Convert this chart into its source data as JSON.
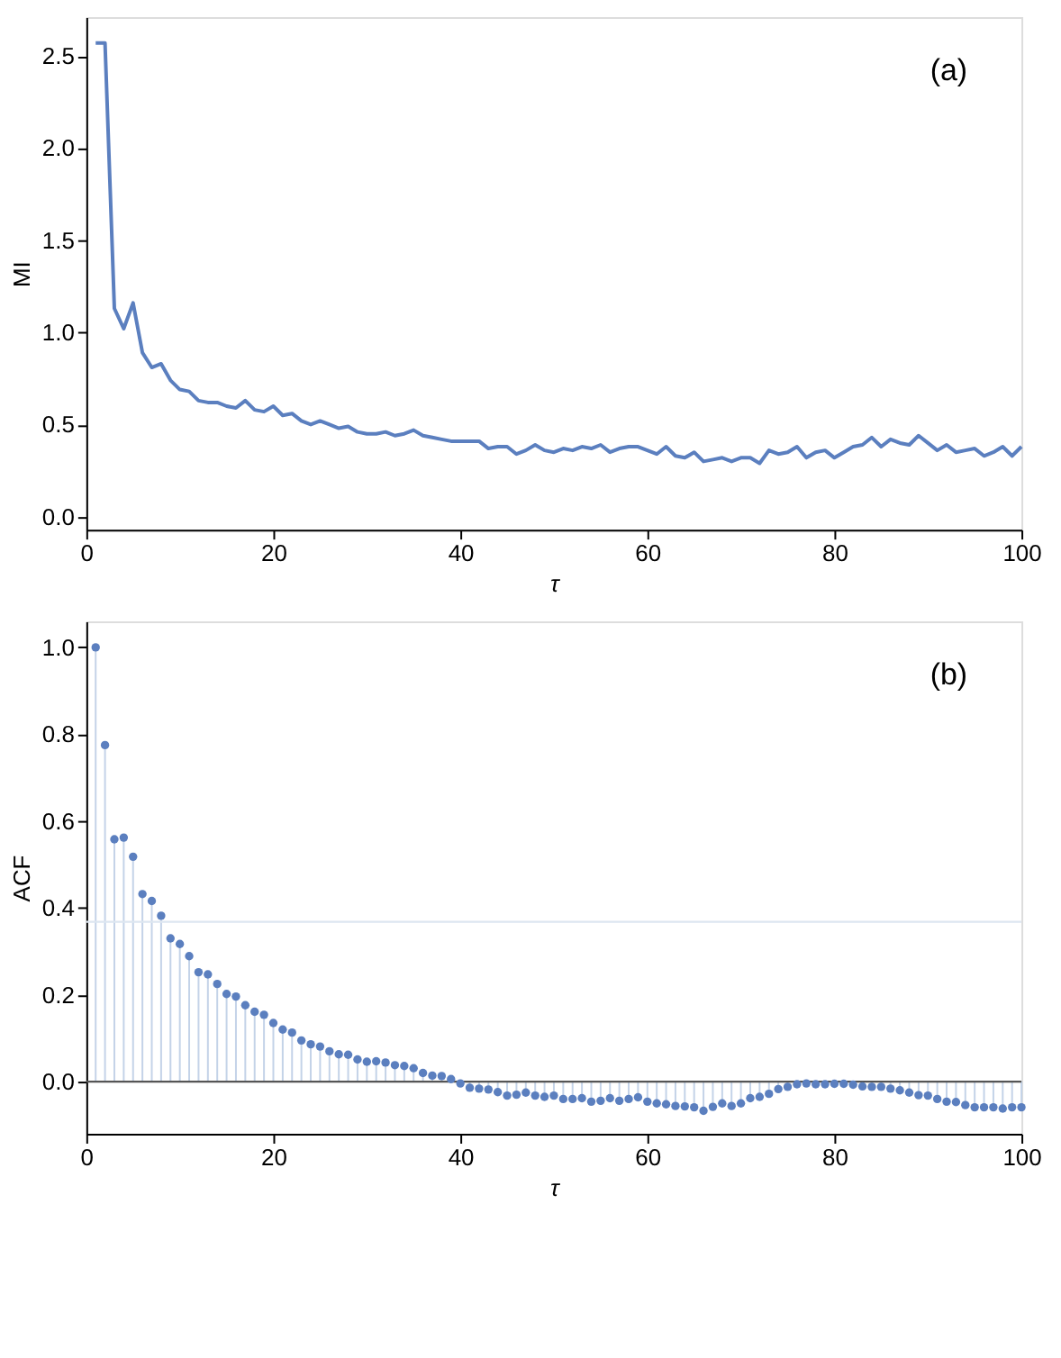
{
  "chart_data": [
    {
      "type": "line",
      "xlabel": "τ",
      "ylabel": "MI",
      "annotations": [
        "(a)"
      ],
      "x": [
        1,
        2,
        3,
        4,
        5,
        6,
        7,
        8,
        9,
        10,
        11,
        12,
        13,
        14,
        15,
        16,
        17,
        18,
        19,
        20,
        21,
        22,
        23,
        24,
        25,
        26,
        27,
        28,
        29,
        30,
        31,
        32,
        33,
        34,
        35,
        36,
        37,
        38,
        39,
        40,
        41,
        42,
        43,
        44,
        45,
        46,
        47,
        48,
        49,
        50,
        51,
        52,
        53,
        54,
        55,
        56,
        57,
        58,
        59,
        60,
        61,
        62,
        63,
        64,
        65,
        66,
        67,
        68,
        69,
        70,
        71,
        72,
        73,
        74,
        75,
        76,
        77,
        78,
        79,
        80,
        81,
        82,
        83,
        84,
        85,
        86,
        87,
        88,
        89,
        90,
        91,
        92,
        93,
        94,
        95,
        96,
        97,
        98,
        99,
        100
      ],
      "series": [
        {
          "color": "#5b7fbf",
          "values": [
            2.57,
            2.57,
            1.13,
            1.02,
            1.16,
            0.89,
            0.81,
            0.83,
            0.74,
            0.69,
            0.68,
            0.63,
            0.62,
            0.62,
            0.6,
            0.59,
            0.63,
            0.58,
            0.57,
            0.6,
            0.55,
            0.56,
            0.52,
            0.5,
            0.52,
            0.5,
            0.48,
            0.49,
            0.46,
            0.45,
            0.45,
            0.46,
            0.44,
            0.45,
            0.47,
            0.44,
            0.43,
            0.42,
            0.41,
            0.41,
            0.41,
            0.41,
            0.37,
            0.38,
            0.38,
            0.34,
            0.36,
            0.39,
            0.36,
            0.35,
            0.37,
            0.36,
            0.38,
            0.37,
            0.39,
            0.35,
            0.37,
            0.38,
            0.38,
            0.36,
            0.34,
            0.38,
            0.33,
            0.32,
            0.35,
            0.3,
            0.31,
            0.32,
            0.3,
            0.32,
            0.32,
            0.29,
            0.36,
            0.34,
            0.35,
            0.38,
            0.32,
            0.35,
            0.36,
            0.32,
            0.35,
            0.38,
            0.39,
            0.43,
            0.38,
            0.42,
            0.4,
            0.39,
            0.44,
            0.4,
            0.36,
            0.39,
            0.35,
            0.36,
            0.37,
            0.33,
            0.35,
            0.38,
            0.33,
            0.38
          ]
        }
      ],
      "xlim": [
        0,
        100
      ],
      "xticks": [
        0,
        20,
        40,
        60,
        80,
        100
      ],
      "ylim": [
        -0.07,
        2.71
      ],
      "yticks": [
        {
          "value": 0,
          "label": "0.0"
        },
        0.5,
        {
          "value": 1,
          "label": "1.0"
        },
        1.5,
        {
          "value": 2,
          "label": "2.0"
        },
        2.5
      ],
      "grid": false,
      "marker": "none",
      "line_style": "solid"
    },
    {
      "type": "lollipop",
      "xlabel": "τ",
      "ylabel": "ACF",
      "annotations": [
        "(b)"
      ],
      "x": [
        1,
        2,
        3,
        4,
        5,
        6,
        7,
        8,
        9,
        10,
        11,
        12,
        13,
        14,
        15,
        16,
        17,
        18,
        19,
        20,
        21,
        22,
        23,
        24,
        25,
        26,
        27,
        28,
        29,
        30,
        31,
        32,
        33,
        34,
        35,
        36,
        37,
        38,
        39,
        40,
        41,
        42,
        43,
        44,
        45,
        46,
        47,
        48,
        49,
        50,
        51,
        52,
        53,
        54,
        55,
        56,
        57,
        58,
        59,
        60,
        61,
        62,
        63,
        64,
        65,
        66,
        67,
        68,
        69,
        70,
        71,
        72,
        73,
        74,
        75,
        76,
        77,
        78,
        79,
        80,
        81,
        82,
        83,
        84,
        85,
        86,
        87,
        88,
        89,
        90,
        91,
        92,
        93,
        94,
        95,
        96,
        97,
        98,
        99,
        100
      ],
      "series": [
        {
          "color": "#5b7fbf",
          "values": [
            1.0,
            0.775,
            0.558,
            0.562,
            0.518,
            0.432,
            0.416,
            0.382,
            0.33,
            0.317,
            0.289,
            0.252,
            0.247,
            0.225,
            0.202,
            0.196,
            0.176,
            0.161,
            0.154,
            0.135,
            0.12,
            0.113,
            0.095,
            0.086,
            0.081,
            0.07,
            0.063,
            0.062,
            0.051,
            0.046,
            0.047,
            0.044,
            0.038,
            0.036,
            0.031,
            0.02,
            0.014,
            0.013,
            0.006,
            -0.004,
            -0.014,
            -0.016,
            -0.018,
            -0.024,
            -0.032,
            -0.03,
            -0.025,
            -0.032,
            -0.035,
            -0.032,
            -0.04,
            -0.04,
            -0.038,
            -0.046,
            -0.044,
            -0.038,
            -0.044,
            -0.04,
            -0.036,
            -0.046,
            -0.05,
            -0.052,
            -0.056,
            -0.057,
            -0.059,
            -0.067,
            -0.058,
            -0.05,
            -0.056,
            -0.05,
            -0.038,
            -0.035,
            -0.028,
            -0.017,
            -0.012,
            -0.006,
            -0.004,
            -0.006,
            -0.006,
            -0.005,
            -0.005,
            -0.007,
            -0.011,
            -0.012,
            -0.012,
            -0.016,
            -0.02,
            -0.025,
            -0.031,
            -0.032,
            -0.04,
            -0.046,
            -0.047,
            -0.054,
            -0.059,
            -0.059,
            -0.059,
            -0.062,
            -0.059,
            -0.059
          ]
        }
      ],
      "xlim": [
        0,
        100
      ],
      "xticks": [
        0,
        20,
        40,
        60,
        80,
        100
      ],
      "ylim": [
        -0.12,
        1.06
      ],
      "yticks": [
        {
          "value": 0,
          "label": "0.0"
        },
        0.2,
        0.4,
        0.6,
        0.8,
        {
          "value": 1,
          "label": "1.0"
        }
      ],
      "ref_lines": [
        {
          "axis": "y",
          "value": 0,
          "color": "#555555"
        },
        {
          "axis": "y",
          "value": 0.368,
          "color": "#dde6f0"
        }
      ],
      "grid": false,
      "marker": "circle"
    }
  ]
}
